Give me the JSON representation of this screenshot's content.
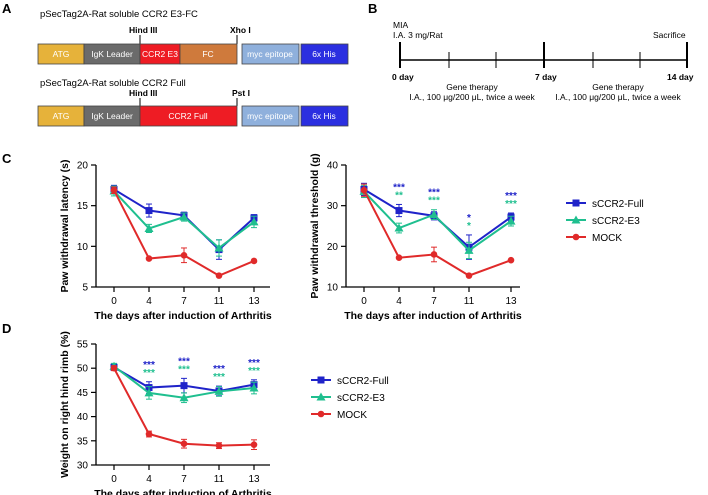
{
  "panels": {
    "a": {
      "label": "A",
      "construct1": {
        "title": "pSecTag2A-Rat soluble CCR2 E3-FC",
        "site_left": "Hind III",
        "site_right": "Xho I",
        "segments": [
          {
            "label": "ATG",
            "color": "#e6b23a"
          },
          {
            "label": "IgK Leader",
            "color": "#6b6b6b"
          },
          {
            "label": "CCR2 E3",
            "color": "#ee1c24"
          },
          {
            "label": "FC",
            "color": "#cf7a3c"
          },
          {
            "label": "myc epitope",
            "color": "#8fb0dc"
          },
          {
            "label": "6x His",
            "color": "#2b2fe0"
          }
        ]
      },
      "construct2": {
        "title": "pSecTag2A-Rat soluble CCR2 Full",
        "site_left": "Hind III",
        "site_right": "Pst I",
        "segments": [
          {
            "label": "ATG",
            "color": "#e6b23a"
          },
          {
            "label": "IgK Leader",
            "color": "#6b6b6b"
          },
          {
            "label": "CCR2 Full",
            "color": "#ee1c24"
          },
          {
            "label": "myc epitope",
            "color": "#8fb0dc"
          },
          {
            "label": "6x His",
            "color": "#2b2fe0"
          }
        ]
      }
    },
    "b": {
      "label": "B",
      "mia_line1": "MIA",
      "mia_line2": "I.A. 3 mg/Rat",
      "sacrifice": "Sacrifice",
      "ticks": [
        "0 day",
        "7 day",
        "14 day"
      ],
      "gene_therapy": "Gene therapy",
      "dose": "I.A., 100 μg/200 μL, twice a week"
    },
    "c_label": "C",
    "d_label": "D"
  },
  "chart_data": [
    {
      "id": "C1",
      "type": "line",
      "title": "",
      "xlabel": "The days after induction of Arthritis",
      "ylabel": "Paw withdrawal latency (s)",
      "categories": [
        "0",
        "4",
        "7",
        "11",
        "13"
      ],
      "ylim": [
        5,
        20
      ],
      "yticks": [
        "5",
        "10",
        "15",
        "20"
      ],
      "series": [
        {
          "name": "sCCR2-Full",
          "color": "#1f23c9",
          "marker": "square",
          "values": [
            17.0,
            14.4,
            13.8,
            9.6,
            13.5
          ],
          "errors": [
            0.5,
            0.8,
            0.4,
            1.2,
            0.4
          ]
        },
        {
          "name": "sCCR2-E3",
          "color": "#1fbf8f",
          "marker": "triangle",
          "values": [
            16.8,
            12.2,
            13.6,
            9.8,
            13.0
          ],
          "errors": [
            0.6,
            0.5,
            0.5,
            1.0,
            0.7
          ]
        },
        {
          "name": "MOCK",
          "color": "#e02a2a",
          "marker": "circle",
          "values": [
            16.9,
            8.5,
            8.9,
            6.4,
            8.2
          ],
          "errors": [
            0.4,
            0.1,
            0.9,
            0.1,
            0.1
          ]
        }
      ],
      "annotations": []
    },
    {
      "id": "C2",
      "type": "line",
      "title": "",
      "xlabel": "The days after induction of Arthritis",
      "ylabel": "Paw withdrawal threshold (g)",
      "categories": [
        "0",
        "4",
        "7",
        "11",
        "13"
      ],
      "ylim": [
        10,
        40
      ],
      "yticks": [
        "10",
        "20",
        "30",
        "40"
      ],
      "legend": [
        "sCCR2-Full",
        "sCCR2-E3",
        "MOCK"
      ],
      "series": [
        {
          "name": "sCCR2-Full",
          "color": "#1f23c9",
          "marker": "square",
          "values": [
            34.0,
            28.8,
            27.5,
            19.8,
            27.2
          ],
          "errors": [
            1.5,
            1.5,
            1.0,
            3.0,
            1.0
          ]
        },
        {
          "name": "sCCR2-E3",
          "color": "#1fbf8f",
          "marker": "triangle",
          "values": [
            33.5,
            24.5,
            27.8,
            19.0,
            26.2
          ],
          "errors": [
            1.5,
            1.2,
            1.2,
            2.0,
            1.2
          ]
        },
        {
          "name": "MOCK",
          "color": "#e02a2a",
          "marker": "circle",
          "values": [
            33.8,
            17.2,
            18.0,
            12.8,
            16.6
          ],
          "errors": [
            1.5,
            0.2,
            1.8,
            0.2,
            0.2
          ]
        }
      ],
      "annotations": [
        {
          "x": "4",
          "full": "***",
          "e3": "**"
        },
        {
          "x": "7",
          "full": "***",
          "e3": "***"
        },
        {
          "x": "11",
          "full": "*",
          "e3": "*"
        },
        {
          "x": "13",
          "full": "***",
          "e3": "***"
        }
      ]
    },
    {
      "id": "D",
      "type": "line",
      "title": "",
      "xlabel": "The days after induction of Arthritis",
      "ylabel": "Weight on right hind rimb (%)",
      "categories": [
        "0",
        "4",
        "7",
        "11",
        "13"
      ],
      "ylim": [
        30,
        55
      ],
      "yticks": [
        "30",
        "35",
        "40",
        "45",
        "50",
        "55"
      ],
      "legend": [
        "sCCR2-Full",
        "sCCR2-E3",
        "MOCK"
      ],
      "series": [
        {
          "name": "sCCR2-Full",
          "color": "#1f23c9",
          "marker": "square",
          "values": [
            50.2,
            46.0,
            46.4,
            45.3,
            46.6
          ],
          "errors": [
            0.6,
            1.2,
            1.5,
            1.0,
            1.0
          ]
        },
        {
          "name": "sCCR2-E3",
          "color": "#1fbf8f",
          "marker": "triangle",
          "values": [
            50.4,
            44.9,
            43.9,
            45.2,
            45.9
          ],
          "errors": [
            0.6,
            1.3,
            1.0,
            1.0,
            1.2
          ]
        },
        {
          "name": "MOCK",
          "color": "#e02a2a",
          "marker": "circle",
          "values": [
            50.0,
            36.4,
            34.4,
            34.0,
            34.2
          ],
          "errors": [
            0.5,
            0.6,
            0.9,
            0.6,
            1.0
          ]
        }
      ],
      "annotations": [
        {
          "x": "4",
          "full": "***",
          "e3": "***"
        },
        {
          "x": "7",
          "full": "***",
          "e3": "***"
        },
        {
          "x": "11",
          "full": "***",
          "e3": "***"
        },
        {
          "x": "13",
          "full": "***",
          "e3": "***"
        }
      ]
    }
  ]
}
